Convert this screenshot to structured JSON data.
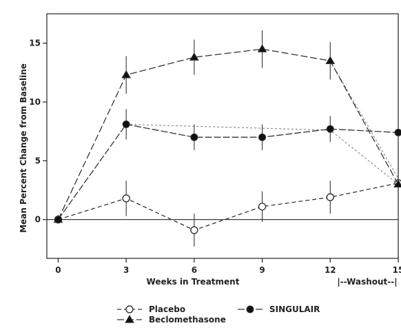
{
  "chart_data": {
    "type": "line",
    "title": "",
    "xlabel": "Weeks in Treatment",
    "ylabel": "Mean Percent Change from Baseline",
    "washout_label": "|--Washout--|",
    "x_ticks": [
      0,
      3,
      6,
      9,
      12,
      15
    ],
    "x_tick_labels": [
      "0",
      "3",
      "6",
      "9",
      "12",
      "15"
    ],
    "y_ticks": [
      0,
      5,
      10,
      15
    ],
    "y_tick_labels": [
      "0",
      "5",
      "10",
      "15"
    ],
    "xlim": [
      -0.5,
      15
    ],
    "ylim": [
      -3.3,
      17.5
    ],
    "grid": false,
    "legend_position": "bottom",
    "series": [
      {
        "name": "Placebo",
        "marker": "open-circle",
        "dash": "6,4",
        "x": [
          0,
          3,
          6,
          9,
          12,
          15
        ],
        "values": [
          0,
          1.8,
          -0.9,
          1.1,
          1.9,
          3.1
        ],
        "err": [
          0.3,
          1.5,
          1.4,
          1.3,
          1.4,
          1.4
        ]
      },
      {
        "name": "Beclomethasone",
        "marker": "triangle",
        "dash": "10,4",
        "x": [
          0,
          3,
          6,
          9,
          12,
          15
        ],
        "values": [
          0,
          12.3,
          13.8,
          14.5,
          13.5,
          3.0
        ],
        "err": [
          0.3,
          1.6,
          1.5,
          1.6,
          1.6,
          3.2
        ]
      },
      {
        "name": "SINGULAIR",
        "marker": "filled-circle",
        "dash": "10,3",
        "x": [
          0,
          3,
          6,
          9,
          12,
          15
        ],
        "values": [
          0,
          8.1,
          7.0,
          7.0,
          7.7,
          7.4
        ],
        "err": [
          0.3,
          1.3,
          1.1,
          1.1,
          1.1,
          1.3
        ]
      }
    ],
    "secondary_lines": [
      {
        "name_ref": "SINGULAIR",
        "x": [
          3,
          12,
          15
        ],
        "values": [
          8.1,
          7.6,
          3.0
        ],
        "dash": "3,3"
      },
      {
        "name_ref": "Beclomethasone",
        "x": [
          12,
          15
        ],
        "values": [
          13.5,
          3.5
        ],
        "dash": "3,3"
      }
    ],
    "colors": {
      "line": "#333333",
      "axis": "#222222",
      "marker_fill_filled": "#111111",
      "marker_fill_open": "#ffffff",
      "background": "#ffffff"
    }
  }
}
